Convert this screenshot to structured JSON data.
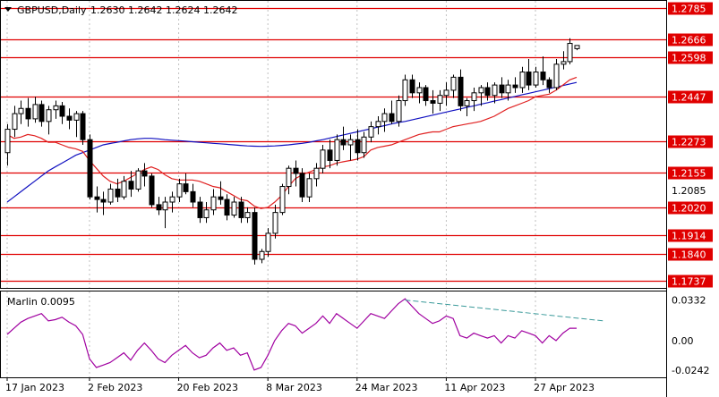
{
  "header": {
    "symbol": "GBPUSD,Daily",
    "ohlc": "1.2630 1.2642 1.2624 1.2642"
  },
  "colors": {
    "background": "#ffffff",
    "grid": "#c0c0c0",
    "level": "#e00000",
    "candle": "#000000",
    "ma_red": "#e02020",
    "ma_blue": "#1010c0",
    "osc": "#a000a0",
    "trend": "#3a9a9a"
  },
  "chart_data": {
    "type": "candlestick",
    "title": "GBPUSD,Daily",
    "price_levels": [
      1.2785,
      1.2666,
      1.2598,
      1.2447,
      1.2273,
      1.2155,
      1.202,
      1.1914,
      1.184,
      1.1737
    ],
    "level_labels": [
      "1.2785",
      "1.2666",
      "1.2598",
      "1.2447",
      "1.2273",
      "1.2155",
      "1.2020",
      "1.1914",
      "1.1840",
      "1.1737"
    ],
    "price_ticks": [
      "1.2085"
    ],
    "ylim": [
      1.171,
      1.281
    ],
    "x_labels": [
      "17 Jan 2023",
      "2 Feb 2023",
      "20 Feb 2023",
      "8 Mar 2023",
      "24 Mar 2023",
      "11 Apr 2023",
      "27 Apr 2023"
    ],
    "x_label_bars": [
      0,
      12,
      25,
      38,
      51,
      64,
      77
    ],
    "candles": [
      [
        1.223,
        1.234,
        1.218,
        1.232
      ],
      [
        1.232,
        1.241,
        1.229,
        1.238
      ],
      [
        1.238,
        1.243,
        1.234,
        1.24
      ],
      [
        1.24,
        1.244,
        1.233,
        1.236
      ],
      [
        1.236,
        1.2445,
        1.2345,
        1.2415
      ],
      [
        1.2415,
        1.243,
        1.233,
        1.235
      ],
      [
        1.235,
        1.241,
        1.23,
        1.2395
      ],
      [
        1.2395,
        1.243,
        1.236,
        1.241
      ],
      [
        1.241,
        1.2425,
        1.234,
        1.237
      ],
      [
        1.237,
        1.24,
        1.232,
        1.2355
      ],
      [
        1.2355,
        1.239,
        1.229,
        1.238
      ],
      [
        1.238,
        1.239,
        1.226,
        1.228
      ],
      [
        1.228,
        1.23,
        1.205,
        1.206
      ],
      [
        1.206,
        1.21,
        1.2,
        1.205
      ],
      [
        1.205,
        1.208,
        1.199,
        1.204
      ],
      [
        1.204,
        1.211,
        1.203,
        1.209
      ],
      [
        1.209,
        1.213,
        1.204,
        1.206
      ],
      [
        1.206,
        1.214,
        1.205,
        1.212
      ],
      [
        1.212,
        1.216,
        1.206,
        1.209
      ],
      [
        1.209,
        1.217,
        1.208,
        1.216
      ],
      [
        1.216,
        1.219,
        1.21,
        1.214
      ],
      [
        1.214,
        1.215,
        1.202,
        1.203
      ],
      [
        1.203,
        1.206,
        1.199,
        1.201
      ],
      [
        1.201,
        1.206,
        1.194,
        1.204
      ],
      [
        1.204,
        1.208,
        1.2,
        1.206
      ],
      [
        1.206,
        1.213,
        1.204,
        1.211
      ],
      [
        1.211,
        1.215,
        1.207,
        1.208
      ],
      [
        1.208,
        1.211,
        1.202,
        1.204
      ],
      [
        1.204,
        1.206,
        1.196,
        1.198
      ],
      [
        1.198,
        1.204,
        1.196,
        1.201
      ],
      [
        1.201,
        1.209,
        1.199,
        1.206
      ],
      [
        1.206,
        1.212,
        1.203,
        1.205
      ],
      [
        1.205,
        1.207,
        1.197,
        1.199
      ],
      [
        1.199,
        1.206,
        1.198,
        1.204
      ],
      [
        1.204,
        1.206,
        1.196,
        1.198
      ],
      [
        1.198,
        1.202,
        1.196,
        1.2
      ],
      [
        1.2,
        1.202,
        1.18,
        1.182
      ],
      [
        1.182,
        1.186,
        1.1805,
        1.185
      ],
      [
        1.185,
        1.194,
        1.183,
        1.192
      ],
      [
        1.192,
        1.203,
        1.19,
        1.2
      ],
      [
        1.2,
        1.211,
        1.199,
        1.21
      ],
      [
        1.21,
        1.218,
        1.207,
        1.217
      ],
      [
        1.217,
        1.22,
        1.21,
        1.215
      ],
      [
        1.215,
        1.217,
        1.204,
        1.206
      ],
      [
        1.206,
        1.215,
        1.204,
        1.213
      ],
      [
        1.213,
        1.219,
        1.21,
        1.217
      ],
      [
        1.217,
        1.226,
        1.215,
        1.224
      ],
      [
        1.224,
        1.228,
        1.217,
        1.22
      ],
      [
        1.22,
        1.23,
        1.218,
        1.228
      ],
      [
        1.228,
        1.233,
        1.224,
        1.226
      ],
      [
        1.226,
        1.23,
        1.22,
        1.228
      ],
      [
        1.228,
        1.232,
        1.22,
        1.223
      ],
      [
        1.223,
        1.231,
        1.221,
        1.229
      ],
      [
        1.229,
        1.235,
        1.227,
        1.233
      ],
      [
        1.233,
        1.237,
        1.23,
        1.235
      ],
      [
        1.235,
        1.24,
        1.231,
        1.238
      ],
      [
        1.238,
        1.243,
        1.234,
        1.235
      ],
      [
        1.235,
        1.245,
        1.233,
        1.243
      ],
      [
        1.243,
        1.253,
        1.241,
        1.251
      ],
      [
        1.251,
        1.253,
        1.244,
        1.246
      ],
      [
        1.246,
        1.25,
        1.242,
        1.248
      ],
      [
        1.248,
        1.249,
        1.241,
        1.243
      ],
      [
        1.243,
        1.247,
        1.238,
        1.242
      ],
      [
        1.242,
        1.247,
        1.239,
        1.245
      ],
      [
        1.245,
        1.25,
        1.241,
        1.247
      ],
      [
        1.247,
        1.253,
        1.244,
        1.252
      ],
      [
        1.252,
        1.255,
        1.239,
        1.241
      ],
      [
        1.241,
        1.244,
        1.237,
        1.243
      ],
      [
        1.243,
        1.248,
        1.239,
        1.246
      ],
      [
        1.246,
        1.249,
        1.241,
        1.248
      ],
      [
        1.248,
        1.25,
        1.243,
        1.245
      ],
      [
        1.245,
        1.25,
        1.242,
        1.249
      ],
      [
        1.249,
        1.252,
        1.244,
        1.246
      ],
      [
        1.246,
        1.251,
        1.243,
        1.249
      ],
      [
        1.249,
        1.252,
        1.246,
        1.248
      ],
      [
        1.248,
        1.256,
        1.246,
        1.254
      ],
      [
        1.254,
        1.259,
        1.247,
        1.249
      ],
      [
        1.249,
        1.256,
        1.248,
        1.254
      ],
      [
        1.254,
        1.26,
        1.249,
        1.251
      ],
      [
        1.251,
        1.252,
        1.246,
        1.248
      ],
      [
        1.248,
        1.259,
        1.247,
        1.257
      ],
      [
        1.257,
        1.262,
        1.255,
        1.258
      ],
      [
        1.258,
        1.267,
        1.257,
        1.265
      ],
      [
        1.263,
        1.2642,
        1.2624,
        1.2642
      ]
    ],
    "ma_red": [
      1.23,
      1.2285,
      1.229,
      1.23,
      1.2295,
      1.2285,
      1.227,
      1.227,
      1.226,
      1.225,
      1.2245,
      1.2235,
      1.22,
      1.217,
      1.214,
      1.212,
      1.211,
      1.212,
      1.2135,
      1.215,
      1.2165,
      1.2175,
      1.2165,
      1.2145,
      1.213,
      1.2125,
      1.2125,
      1.2125,
      1.212,
      1.211,
      1.21,
      1.2095,
      1.208,
      1.2065,
      1.205,
      1.2045,
      1.2025,
      1.2015,
      1.202,
      1.204,
      1.2065,
      1.21,
      1.213,
      1.2145,
      1.2155,
      1.2165,
      1.2175,
      1.218,
      1.219,
      1.2195,
      1.22,
      1.2205,
      1.2215,
      1.224,
      1.225,
      1.2255,
      1.226,
      1.227,
      1.228,
      1.229,
      1.23,
      1.2305,
      1.231,
      1.231,
      1.232,
      1.233,
      1.2335,
      1.234,
      1.2345,
      1.235,
      1.236,
      1.237,
      1.2385,
      1.24,
      1.241,
      1.242,
      1.243,
      1.2445,
      1.245,
      1.2455,
      1.247,
      1.249,
      1.251,
      1.252
    ],
    "ma_red_start_bar": 0,
    "ma_blue": [
      1.204,
      1.206,
      1.208,
      1.21,
      1.212,
      1.214,
      1.216,
      1.2175,
      1.219,
      1.2205,
      1.222,
      1.223,
      1.224,
      1.225,
      1.226,
      1.2265,
      1.227,
      1.2275,
      1.228,
      1.2283,
      1.2285,
      1.2285,
      1.2283,
      1.228,
      1.2278,
      1.2276,
      1.2274,
      1.2272,
      1.227,
      1.2268,
      1.2266,
      1.2264,
      1.2262,
      1.226,
      1.2258,
      1.2256,
      1.2255,
      1.2254,
      1.2255,
      1.2256,
      1.2258,
      1.226,
      1.2263,
      1.2266,
      1.227,
      1.2275,
      1.228,
      1.2286,
      1.2292,
      1.2298,
      1.2304,
      1.231,
      1.2316,
      1.2322,
      1.2328,
      1.2334,
      1.234,
      1.2346,
      1.235,
      1.2356,
      1.2362,
      1.2368,
      1.2374,
      1.238,
      1.2386,
      1.2392,
      1.2398,
      1.2404,
      1.241,
      1.2416,
      1.2422,
      1.2428,
      1.2434,
      1.244,
      1.2446,
      1.2452,
      1.2458,
      1.2464,
      1.247,
      1.2476,
      1.2482,
      1.2488,
      1.2494,
      1.25
    ],
    "ma_blue_start_bar": 0,
    "oscillator": {
      "name": "Marlin",
      "value_label": "Marlin 0.0095",
      "ticks": [
        "0.0332",
        "0.00",
        "-0.0242"
      ],
      "ylim": [
        -0.03,
        0.04
      ],
      "values": [
        0.005,
        0.01,
        0.015,
        0.018,
        0.02,
        0.022,
        0.016,
        0.017,
        0.019,
        0.015,
        0.012,
        0.005,
        -0.015,
        -0.022,
        -0.02,
        -0.018,
        -0.014,
        -0.01,
        -0.016,
        -0.008,
        -0.002,
        -0.008,
        -0.015,
        -0.018,
        -0.012,
        -0.008,
        -0.004,
        -0.01,
        -0.014,
        -0.012,
        -0.006,
        -0.002,
        -0.008,
        -0.006,
        -0.012,
        -0.01,
        -0.024,
        -0.022,
        -0.012,
        0.0,
        0.008,
        0.014,
        0.012,
        0.006,
        0.01,
        0.014,
        0.02,
        0.014,
        0.022,
        0.018,
        0.014,
        0.01,
        0.016,
        0.022,
        0.02,
        0.018,
        0.024,
        0.03,
        0.034,
        0.028,
        0.022,
        0.018,
        0.014,
        0.016,
        0.02,
        0.018,
        0.004,
        0.002,
        0.006,
        0.004,
        0.002,
        0.004,
        -0.002,
        0.004,
        0.002,
        0.008,
        0.006,
        0.004,
        -0.002,
        0.004,
        0.0,
        0.006,
        0.01,
        0.01
      ],
      "trendline": [
        [
          58,
          0.033
        ],
        [
          87,
          0.016
        ]
      ]
    }
  }
}
